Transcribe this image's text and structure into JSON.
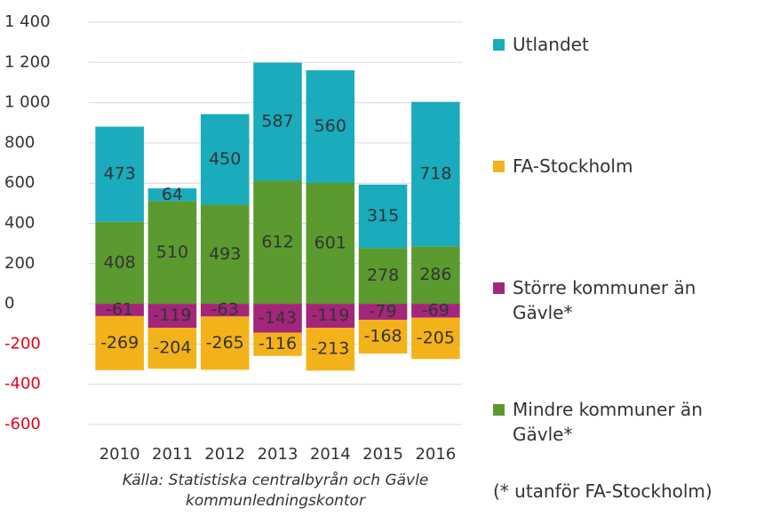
{
  "chart_data": {
    "type": "stacked_bar",
    "categories": [
      "2010",
      "2011",
      "2012",
      "2013",
      "2014",
      "2015",
      "2016"
    ],
    "series": [
      {
        "name": "Utlandet",
        "color": "#1aabbd",
        "values": [
          473,
          64,
          450,
          587,
          560,
          315,
          718
        ]
      },
      {
        "name": "FA-Stockholm",
        "color": "#f4b21a",
        "values": [
          -269,
          -204,
          -265,
          -116,
          -213,
          -168,
          -205
        ]
      },
      {
        "name": "Större kommuner än Gävle*",
        "color": "#a3267a",
        "values": [
          -61,
          -119,
          -63,
          -143,
          -119,
          -79,
          -69
        ]
      },
      {
        "name": "Mindre kommuner än Gävle*",
        "color": "#5a9a2f",
        "values": [
          408,
          510,
          493,
          612,
          601,
          278,
          286
        ]
      }
    ],
    "ylim": [
      -600,
      1400
    ],
    "yticks": [
      -600,
      -400,
      -200,
      0,
      200,
      400,
      600,
      800,
      {
        "value": 1000,
        "label": "1 000"
      },
      {
        "value": 1200,
        "label": "1 200"
      },
      {
        "value": 1400,
        "label": "1 400"
      }
    ],
    "grid": true,
    "negative_tick_color": "#e3001b",
    "source": "Källa: Statistiska centralbyrån och Gävle kommunledningskontor",
    "note": "(* utanför FA-Stockholm)",
    "legend": "right"
  }
}
